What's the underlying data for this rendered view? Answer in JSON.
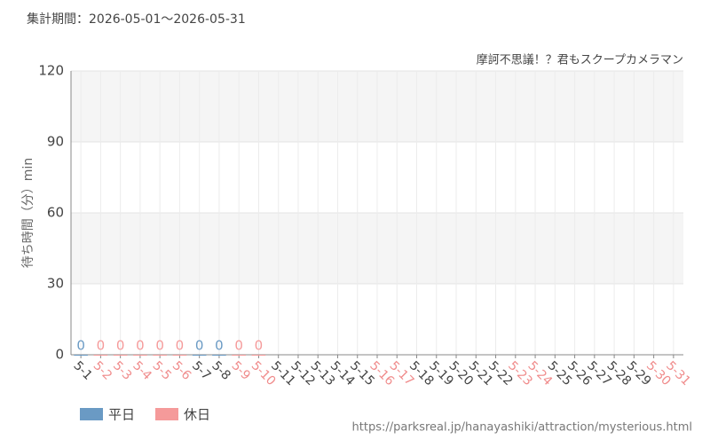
{
  "chart_data": {
    "type": "bar",
    "title": "集計期間：2026-05-01～2026-05-31",
    "subtitle": "摩訶不思議！？君もスクープカメラマン",
    "y_label": "待ち時間（分）min",
    "source": "https://parksreal.jp/hanayashiki/attraction/mysterious.html",
    "categories": [
      "5-1",
      "5-2",
      "5-3",
      "5-4",
      "5-5",
      "5-6",
      "5-7",
      "5-8",
      "5-9",
      "5-10",
      "5-11",
      "5-12",
      "5-13",
      "5-14",
      "5-15",
      "5-16",
      "5-17",
      "5-18",
      "5-19",
      "5-20",
      "5-21",
      "5-22",
      "5-23",
      "5-24",
      "5-25",
      "5-26",
      "5-27",
      "5-28",
      "5-29",
      "5-30",
      "5-31"
    ],
    "category_label_colors": [
      "#444",
      "#f08c8c",
      "#f08c8c",
      "#f08c8c",
      "#f08c8c",
      "#f08c8c",
      "#444",
      "#444",
      "#f08c8c",
      "#f08c8c",
      "#444",
      "#444",
      "#444",
      "#444",
      "#444",
      "#f08c8c",
      "#f08c8c",
      "#444",
      "#444",
      "#444",
      "#444",
      "#444",
      "#f08c8c",
      "#f08c8c",
      "#444",
      "#444",
      "#444",
      "#444",
      "#444",
      "#f08c8c",
      "#f08c8c"
    ],
    "series": [
      {
        "name": "平日",
        "color": "#6a9ac4",
        "values": [
          0,
          null,
          null,
          null,
          null,
          null,
          0,
          0,
          null,
          null,
          null,
          null,
          null,
          null,
          null,
          null,
          null,
          null,
          null,
          null,
          null,
          null,
          null,
          null,
          null,
          null,
          null,
          null,
          null,
          null,
          null
        ]
      },
      {
        "name": "休日",
        "color": "#f59a9a",
        "values": [
          null,
          0,
          0,
          0,
          0,
          0,
          null,
          null,
          0,
          0,
          null,
          null,
          null,
          null,
          null,
          null,
          null,
          null,
          null,
          null,
          null,
          null,
          null,
          null,
          null,
          null,
          null,
          null,
          null,
          null,
          null
        ]
      }
    ],
    "ylim": [
      0,
      120
    ],
    "yticks": [
      0,
      30,
      60,
      90,
      120
    ],
    "grid": true
  }
}
